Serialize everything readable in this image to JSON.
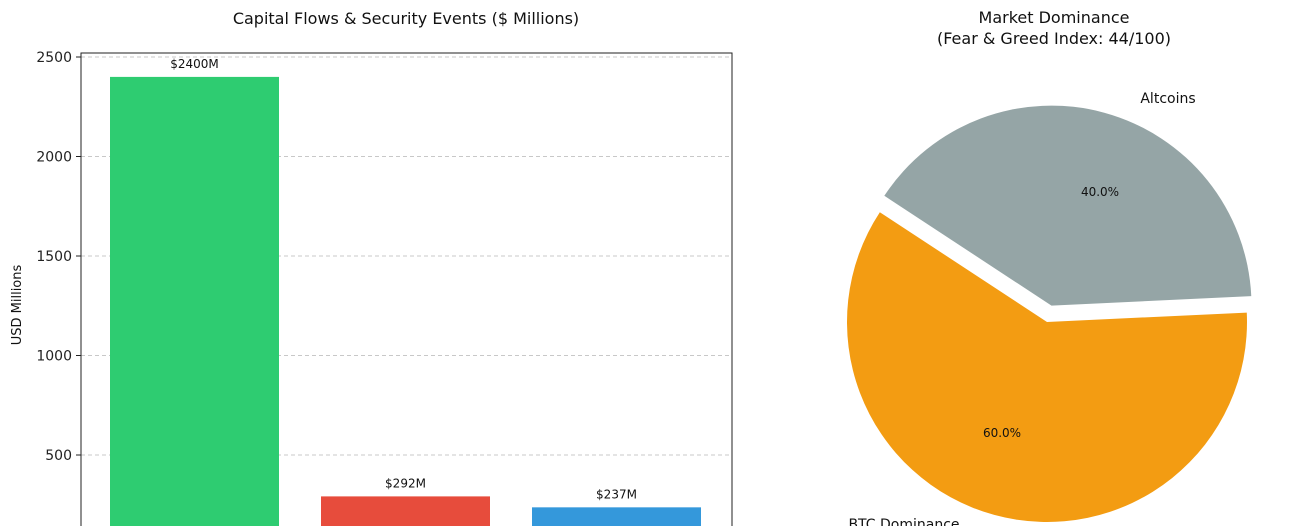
{
  "chart_data": [
    {
      "type": "bar",
      "title": "Capital Flows & Security Events ($ Millions)",
      "xlabel": "",
      "ylabel": "USD Millions",
      "values": [
        2400,
        292,
        237
      ],
      "data_labels": [
        "$2400M",
        "$292M",
        "$237M"
      ],
      "colors": [
        "#2ecc71",
        "#e74c3c",
        "#3498db"
      ],
      "yticks": [
        500,
        1000,
        1500,
        2000,
        2500
      ],
      "ylim_visible": [
        120,
        2520
      ],
      "grid": true
    },
    {
      "type": "pie",
      "title_lines": [
        "Market Dominance",
        "(Fear & Greed Index: 44/100)"
      ],
      "labels": [
        "BTC Dominance",
        "Altcoins"
      ],
      "values": [
        60.0,
        40.0
      ],
      "pct_labels": [
        "60.0%",
        "40.0%"
      ],
      "colors": [
        "#f39c12",
        "#95a5a6"
      ],
      "exploded": "Altcoins"
    }
  ]
}
